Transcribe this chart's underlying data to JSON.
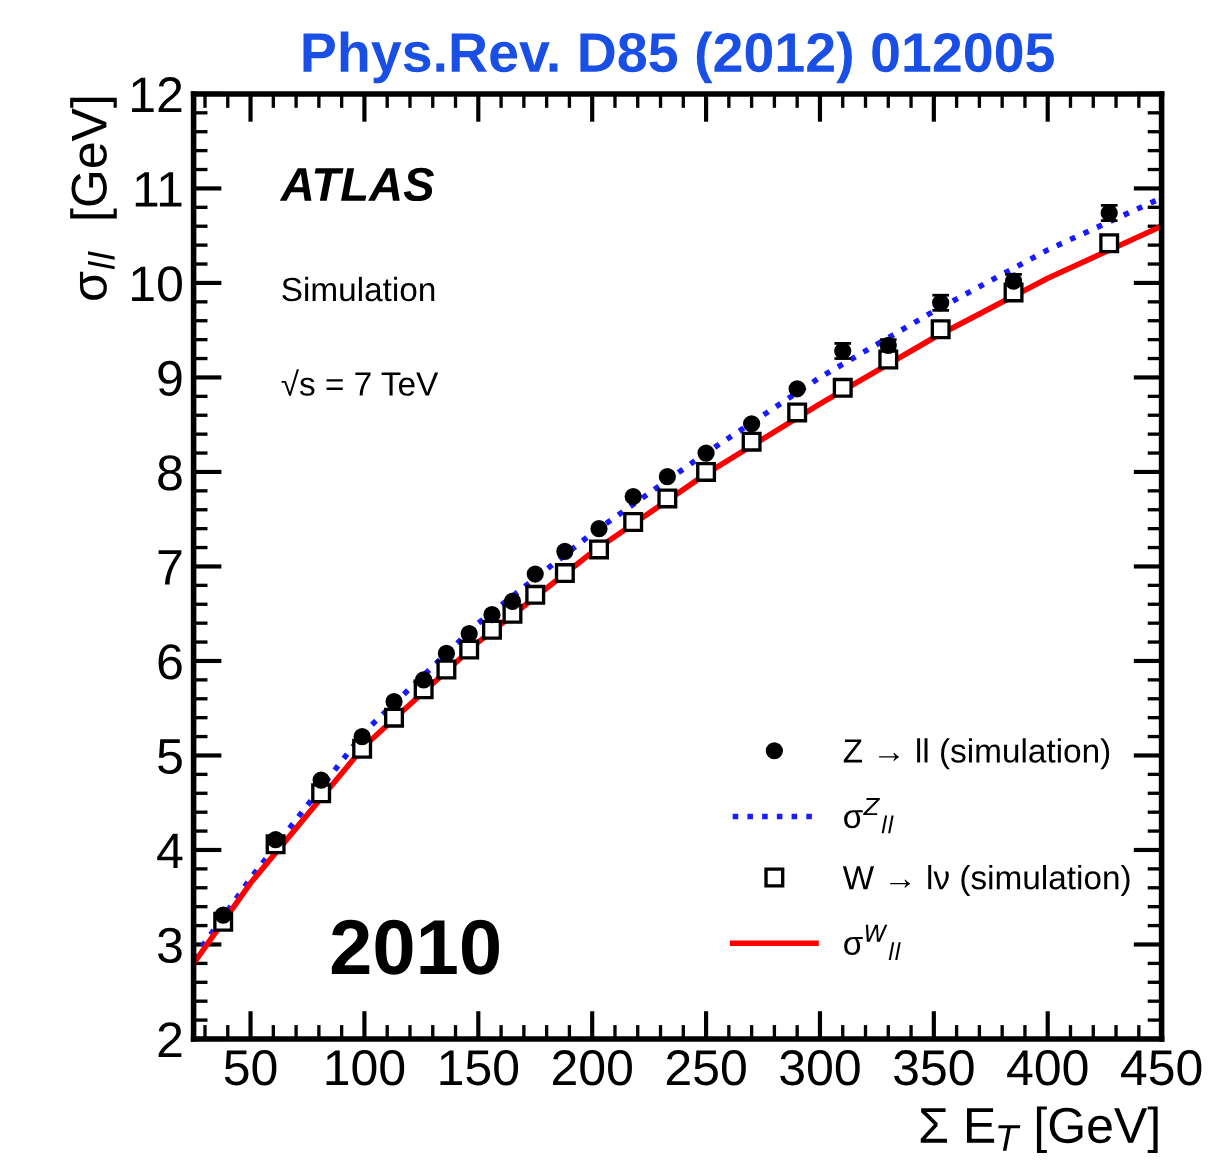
{
  "chart_data": {
    "type": "scatter",
    "title": "Phys.Rev. D85 (2012) 012005",
    "xlabel": "Σ E$_{T}$ [GeV]",
    "ylabel": "σ$_{ll}$  [GeV]",
    "annotations": [
      "ATLAS",
      "Simulation",
      "√s = 7 TeV",
      "2010"
    ],
    "xlim": [
      25,
      450
    ],
    "ylim": [
      2,
      12
    ],
    "xticks": [
      50,
      100,
      150,
      200,
      250,
      300,
      350,
      400,
      450
    ],
    "yticks": [
      2,
      3,
      4,
      5,
      6,
      7,
      8,
      9,
      10,
      11,
      12
    ],
    "grid": false,
    "legend": "bottom right",
    "series": [
      {
        "name": "Z → ll (simulation)",
        "marker": "circle",
        "color": "#000000",
        "x": [
          38,
          61,
          81,
          99,
          113,
          126,
          136,
          146,
          156,
          165,
          175,
          188,
          203,
          218,
          233,
          250,
          270,
          290,
          310,
          330,
          353,
          385,
          427
        ],
        "values": [
          3.31,
          4.11,
          4.74,
          5.2,
          5.57,
          5.8,
          6.08,
          6.29,
          6.49,
          6.63,
          6.92,
          7.16,
          7.4,
          7.74,
          7.95,
          8.2,
          8.51,
          8.88,
          9.28,
          9.34,
          9.79,
          10.02,
          10.74
        ],
        "errors": [
          null,
          null,
          null,
          null,
          null,
          null,
          null,
          null,
          null,
          null,
          null,
          null,
          null,
          null,
          null,
          null,
          null,
          null,
          0.08,
          0.06,
          0.08,
          0.07,
          0.08
        ]
      },
      {
        "name": "σ$^{Z}$$_{ll}$",
        "type": "line",
        "line_style": "dotted",
        "color": "#1a1aff",
        "x": [
          25,
          50,
          100,
          150,
          200,
          250,
          300,
          350,
          400,
          450
        ],
        "values": [
          2.85,
          3.7,
          5.25,
          6.4,
          7.35,
          8.2,
          9.0,
          9.7,
          10.35,
          10.9
        ]
      },
      {
        "name": "W → lν (simulation)",
        "marker": "square",
        "color": "#000000",
        "x": [
          38,
          61,
          81,
          99,
          113,
          126,
          136,
          146,
          156,
          165,
          175,
          188,
          203,
          218,
          233,
          250,
          270,
          290,
          310,
          330,
          353,
          385,
          427
        ],
        "values": [
          3.24,
          4.06,
          4.6,
          5.07,
          5.4,
          5.7,
          5.91,
          6.12,
          6.33,
          6.5,
          6.7,
          6.93,
          7.18,
          7.47,
          7.72,
          8.0,
          8.32,
          8.63,
          8.89,
          9.19,
          9.51,
          9.9,
          10.42
        ]
      },
      {
        "name": "σ$^{W}$$_{ll}$",
        "type": "line",
        "line_style": "solid",
        "color": "#ff0000",
        "x": [
          25,
          50,
          100,
          150,
          200,
          250,
          300,
          350,
          400,
          450
        ],
        "values": [
          2.8,
          3.65,
          5.1,
          6.2,
          7.15,
          7.98,
          8.72,
          9.42,
          10.05,
          10.6
        ]
      }
    ]
  }
}
